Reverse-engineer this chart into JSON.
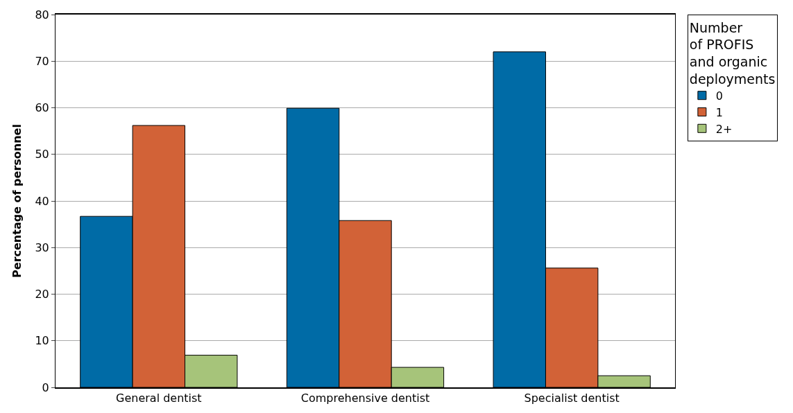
{
  "chart_data": {
    "type": "bar",
    "ylabel": "Percentage of personnel",
    "legend_title": "Number\nof PROFIS\nand organic\ndeployments",
    "categories": [
      "General dentist",
      "Comprehensive dentist",
      "Specialist dentist"
    ],
    "series": [
      {
        "name": "0",
        "color": "#006ba6",
        "values": [
          36.7,
          59.9,
          72.0
        ]
      },
      {
        "name": "1",
        "color": "#d26237",
        "values": [
          56.2,
          35.8,
          25.6
        ]
      },
      {
        "name": "2+",
        "color": "#a6c47a",
        "values": [
          6.9,
          4.3,
          2.5
        ]
      }
    ],
    "ylim": [
      0,
      80
    ],
    "yticks": [
      0,
      10,
      20,
      30,
      40,
      50,
      60,
      70,
      80
    ],
    "grid": "y",
    "legend": "top right"
  }
}
